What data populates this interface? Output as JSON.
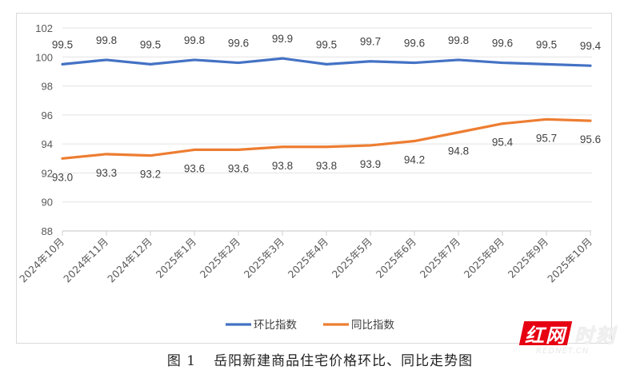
{
  "chart_data": {
    "type": "line",
    "title": "",
    "xlabel": "",
    "ylabel": "",
    "ylim": [
      88,
      102
    ],
    "yticks": [
      88,
      90,
      92,
      94,
      96,
      98,
      100,
      102
    ],
    "grid": true,
    "legend_position": "bottom",
    "categories": [
      "2024年10月",
      "2024年11月",
      "2024年12月",
      "2025年1月",
      "2025年2月",
      "2025年3月",
      "2025年4月",
      "2025年5月",
      "2025年6月",
      "2025年7月",
      "2025年8月",
      "2025年9月",
      "2025年10月"
    ],
    "series": [
      {
        "name": "环比指数",
        "color": "#4472c4",
        "values": [
          99.5,
          99.8,
          99.5,
          99.8,
          99.6,
          99.9,
          99.5,
          99.7,
          99.6,
          99.8,
          99.6,
          99.5,
          99.4
        ]
      },
      {
        "name": "同比指数",
        "color": "#ed7d31",
        "values": [
          93.0,
          93.3,
          93.2,
          93.6,
          93.6,
          93.8,
          93.8,
          93.9,
          94.2,
          94.8,
          95.4,
          95.7,
          95.6
        ]
      }
    ]
  },
  "caption": {
    "figure_number": "图 1",
    "text": "岳阳新建商品住宅价格环比、同比走势图"
  },
  "watermark": {
    "brand_red": "红网",
    "brand_white": "时刻",
    "domain": "REDNET.CN",
    "color": "#e60012"
  }
}
